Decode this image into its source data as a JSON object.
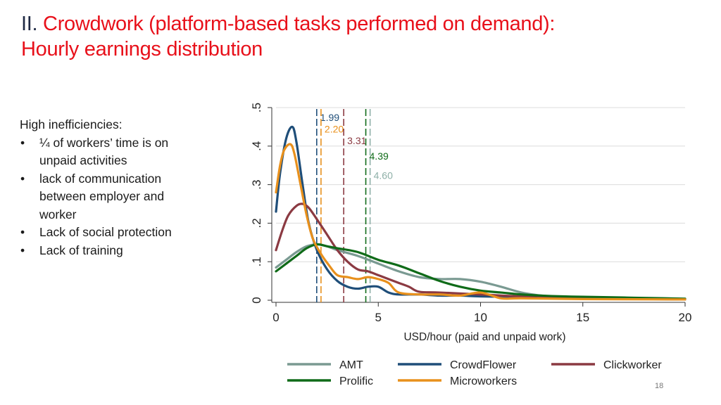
{
  "slide": {
    "title_number": "II.",
    "title_line1": "Crowdwork (platform-based tasks performed on demand):",
    "title_line2": "Hourly earnings distribution",
    "intro": "High inefficiencies:",
    "bullets": [
      "¼ of workers’ time is on unpaid activities",
      "lack of communication between employer and worker",
      "Lack of social protection",
      "Lack of training"
    ],
    "page_number": "18"
  },
  "chart_data": {
    "type": "line",
    "title": "",
    "xlabel": "USD/hour (paid and unpaid work)",
    "ylabel": "",
    "xlim": [
      0,
      20
    ],
    "ylim": [
      0,
      0.5
    ],
    "xticks": [
      "0",
      "5",
      "10",
      "15",
      "20"
    ],
    "yticks": [
      "0",
      ".1",
      ".2",
      ".3",
      ".4",
      ".5"
    ],
    "grid": true,
    "legend_position": "bottom",
    "series": [
      {
        "name": "AMT",
        "color": "#7a9a92",
        "style": "solid",
        "x": [
          0,
          0.5,
          1,
          1.5,
          2,
          2.5,
          3,
          4,
          5,
          6,
          7,
          8,
          9,
          10,
          11,
          12,
          13,
          14,
          15,
          16,
          17,
          18,
          19,
          20
        ],
        "y": [
          0.085,
          0.105,
          0.125,
          0.14,
          0.145,
          0.14,
          0.13,
          0.115,
          0.095,
          0.075,
          0.06,
          0.055,
          0.055,
          0.048,
          0.035,
          0.02,
          0.012,
          0.009,
          0.007,
          0.006,
          0.005,
          0.004,
          0.003,
          0.003
        ]
      },
      {
        "name": "CrowdFlower",
        "color": "#1f4e79",
        "style": "solid",
        "x": [
          0,
          0.2,
          0.5,
          0.8,
          1,
          1.3,
          1.6,
          2,
          2.5,
          3,
          3.5,
          4,
          4.5,
          5,
          5.5,
          6,
          7,
          8,
          9,
          10,
          12,
          15,
          20
        ],
        "y": [
          0.23,
          0.33,
          0.42,
          0.45,
          0.41,
          0.3,
          0.2,
          0.13,
          0.08,
          0.05,
          0.035,
          0.03,
          0.035,
          0.035,
          0.02,
          0.015,
          0.015,
          0.012,
          0.012,
          0.01,
          0.008,
          0.005,
          0.002
        ]
      },
      {
        "name": "Clickworker",
        "color": "#8b3a42",
        "style": "solid",
        "x": [
          0,
          0.3,
          0.6,
          1,
          1.3,
          1.6,
          2,
          2.5,
          3,
          3.5,
          4,
          4.5,
          5,
          5.5,
          6,
          6.5,
          7,
          8,
          10,
          12,
          15,
          20
        ],
        "y": [
          0.13,
          0.18,
          0.22,
          0.245,
          0.25,
          0.24,
          0.21,
          0.17,
          0.13,
          0.1,
          0.08,
          0.075,
          0.065,
          0.055,
          0.045,
          0.035,
          0.022,
          0.02,
          0.015,
          0.01,
          0.006,
          0.002
        ]
      },
      {
        "name": "Prolific",
        "color": "#0f6b18",
        "style": "solid",
        "x": [
          0,
          0.5,
          1,
          1.5,
          2,
          2.5,
          3,
          4,
          5,
          6,
          7,
          8,
          9,
          10,
          11,
          12,
          13,
          14,
          15,
          16,
          17,
          18,
          19,
          20
        ],
        "y": [
          0.075,
          0.095,
          0.115,
          0.135,
          0.145,
          0.14,
          0.135,
          0.125,
          0.105,
          0.09,
          0.07,
          0.05,
          0.035,
          0.025,
          0.02,
          0.015,
          0.012,
          0.01,
          0.009,
          0.008,
          0.007,
          0.006,
          0.005,
          0.004
        ]
      },
      {
        "name": "Microworkers",
        "color": "#e8901c",
        "style": "solid",
        "x": [
          0,
          0.2,
          0.4,
          0.7,
          0.9,
          1.2,
          1.5,
          1.8,
          2.2,
          2.6,
          3,
          3.5,
          4,
          4.5,
          5,
          5.5,
          6,
          7,
          8,
          9,
          10,
          11,
          12,
          15,
          20
        ],
        "y": [
          0.28,
          0.35,
          0.39,
          0.405,
          0.38,
          0.3,
          0.22,
          0.16,
          0.12,
          0.09,
          0.065,
          0.06,
          0.055,
          0.06,
          0.055,
          0.045,
          0.02,
          0.015,
          0.015,
          0.012,
          0.02,
          0.005,
          0.005,
          0.003,
          0.002
        ]
      }
    ],
    "vlines": [
      {
        "x": 1.99,
        "label": "1.99",
        "color": "#1f4e79",
        "label_y": 0.465
      },
      {
        "x": 2.2,
        "label": "2.20",
        "color": "#e8901c",
        "label_y": 0.435
      },
      {
        "x": 3.31,
        "label": "3.31",
        "color": "#8b3a42",
        "label_y": 0.405
      },
      {
        "x": 4.39,
        "label": "4.39",
        "color": "#0f6b18",
        "label_y": 0.365
      },
      {
        "x": 4.6,
        "label": "4.60",
        "color": "#8fb0a8",
        "label_y": 0.315
      }
    ],
    "legend_layout": [
      [
        "AMT",
        "CrowdFlower",
        "Clickworker"
      ],
      [
        "Prolific",
        "Microworkers"
      ]
    ]
  }
}
